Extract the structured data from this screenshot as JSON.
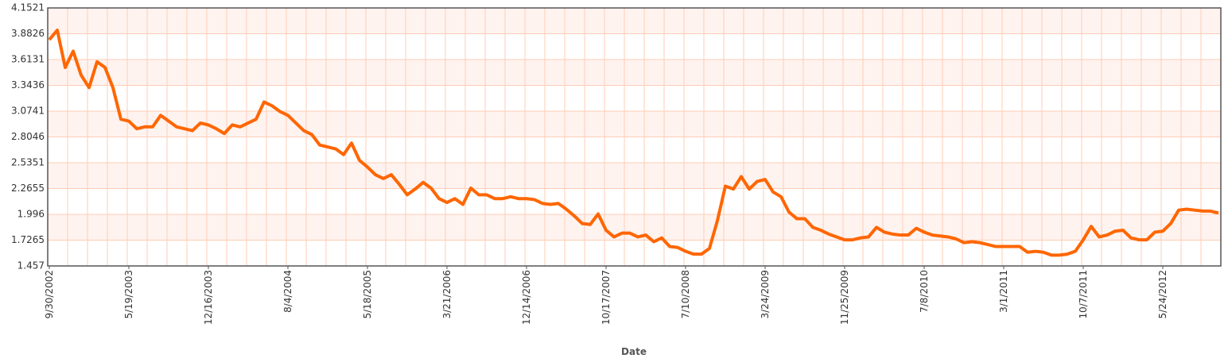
{
  "chart_data": {
    "type": "line",
    "xlabel": "Date",
    "color": "#ff6600",
    "categories": [
      "9/30/2002",
      null,
      null,
      null,
      null,
      null,
      null,
      null,
      null,
      null,
      "5/19/2003",
      null,
      null,
      null,
      null,
      null,
      null,
      null,
      null,
      null,
      "12/16/2003",
      null,
      null,
      null,
      null,
      null,
      null,
      null,
      null,
      null,
      "8/4/2004",
      null,
      null,
      null,
      null,
      null,
      null,
      null,
      null,
      null,
      "5/18/2005",
      null,
      null,
      null,
      null,
      null,
      null,
      null,
      null,
      null,
      "3/21/2006",
      null,
      null,
      null,
      null,
      null,
      null,
      null,
      null,
      null,
      "12/14/2006",
      null,
      null,
      null,
      null,
      null,
      null,
      null,
      null,
      null,
      "10/17/2007",
      null,
      null,
      null,
      null,
      null,
      null,
      null,
      null,
      null,
      "7/10/2008",
      null,
      null,
      null,
      null,
      null,
      null,
      null,
      null,
      null,
      "3/24/2009",
      null,
      null,
      null,
      null,
      null,
      null,
      null,
      null,
      null,
      "11/25/2009",
      null,
      null,
      null,
      null,
      null,
      null,
      null,
      null,
      null,
      "7/8/2010",
      null,
      null,
      null,
      null,
      null,
      null,
      null,
      null,
      null,
      "3/1/2011",
      null,
      null,
      null,
      null,
      null,
      null,
      null,
      null,
      null,
      "10/7/2011",
      null,
      null,
      null,
      null,
      null,
      null,
      null,
      null,
      null,
      "5/24/2012",
      null,
      null,
      null,
      null,
      null,
      null,
      null
    ],
    "values": [
      3.82,
      3.92,
      3.53,
      3.7,
      3.45,
      3.32,
      3.59,
      3.53,
      3.32,
      2.99,
      2.97,
      2.89,
      2.91,
      2.91,
      3.03,
      2.97,
      2.91,
      2.89,
      2.87,
      2.95,
      2.93,
      2.89,
      2.84,
      2.93,
      2.91,
      2.95,
      2.99,
      3.17,
      3.13,
      3.07,
      3.03,
      2.95,
      2.87,
      2.83,
      2.72,
      2.7,
      2.68,
      2.62,
      2.74,
      2.56,
      2.49,
      2.41,
      2.37,
      2.41,
      2.31,
      2.2,
      2.26,
      2.33,
      2.27,
      2.16,
      2.12,
      2.16,
      2.1,
      2.27,
      2.2,
      2.2,
      2.16,
      2.16,
      2.18,
      2.16,
      2.16,
      2.15,
      2.11,
      2.1,
      2.11,
      2.05,
      1.98,
      1.9,
      1.89,
      2.0,
      1.83,
      1.76,
      1.8,
      1.8,
      1.76,
      1.78,
      1.71,
      1.75,
      1.66,
      1.65,
      1.61,
      1.58,
      1.58,
      1.64,
      1.93,
      2.29,
      2.26,
      2.39,
      2.26,
      2.34,
      2.36,
      2.23,
      2.18,
      2.02,
      1.95,
      1.95,
      1.86,
      1.83,
      1.79,
      1.76,
      1.73,
      1.73,
      1.75,
      1.76,
      1.86,
      1.81,
      1.79,
      1.78,
      1.78,
      1.85,
      1.81,
      1.78,
      1.77,
      1.76,
      1.74,
      1.7,
      1.71,
      1.7,
      1.68,
      1.66,
      1.66,
      1.66,
      1.66,
      1.6,
      1.61,
      1.6,
      1.57,
      1.57,
      1.58,
      1.61,
      1.73,
      1.87,
      1.76,
      1.78,
      1.82,
      1.83,
      1.75,
      1.73,
      1.73,
      1.81,
      1.82,
      1.9,
      2.04,
      2.05,
      2.04,
      2.03,
      2.03,
      2.01
    ],
    "ylim": [
      1.457,
      4.1521
    ],
    "yticks": [
      1.457,
      1.7265,
      1.996,
      2.2655,
      2.5351,
      2.8046,
      3.0741,
      3.3436,
      3.6131,
      3.8826,
      4.1521
    ],
    "grid": true
  }
}
